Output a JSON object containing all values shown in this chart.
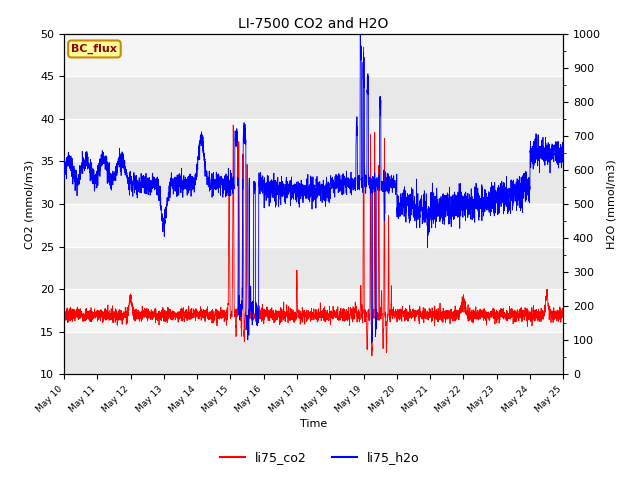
{
  "title": "LI-7500 CO2 and H2O",
  "xlabel": "Time",
  "ylabel_left": "CO2 (mmol/m3)",
  "ylabel_right": "H2O (mmol/m3)",
  "ylim_left": [
    10,
    50
  ],
  "ylim_right": [
    0,
    1000
  ],
  "yticks_left": [
    10,
    15,
    20,
    25,
    30,
    35,
    40,
    45,
    50
  ],
  "yticks_right": [
    0,
    100,
    200,
    300,
    400,
    500,
    600,
    700,
    800,
    900,
    1000
  ],
  "legend_labels": [
    "li75_co2",
    "li75_h2o"
  ],
  "legend_colors": [
    "red",
    "blue"
  ],
  "annotation_text": "BC_flux",
  "annotation_bg": "#FFFF99",
  "annotation_border": "#CC8800",
  "annotation_text_color": "#990000",
  "plot_bg_stripes": [
    "#E8E8E8",
    "#F5F5F5"
  ],
  "figsize": [
    6.4,
    4.8
  ],
  "dpi": 100
}
